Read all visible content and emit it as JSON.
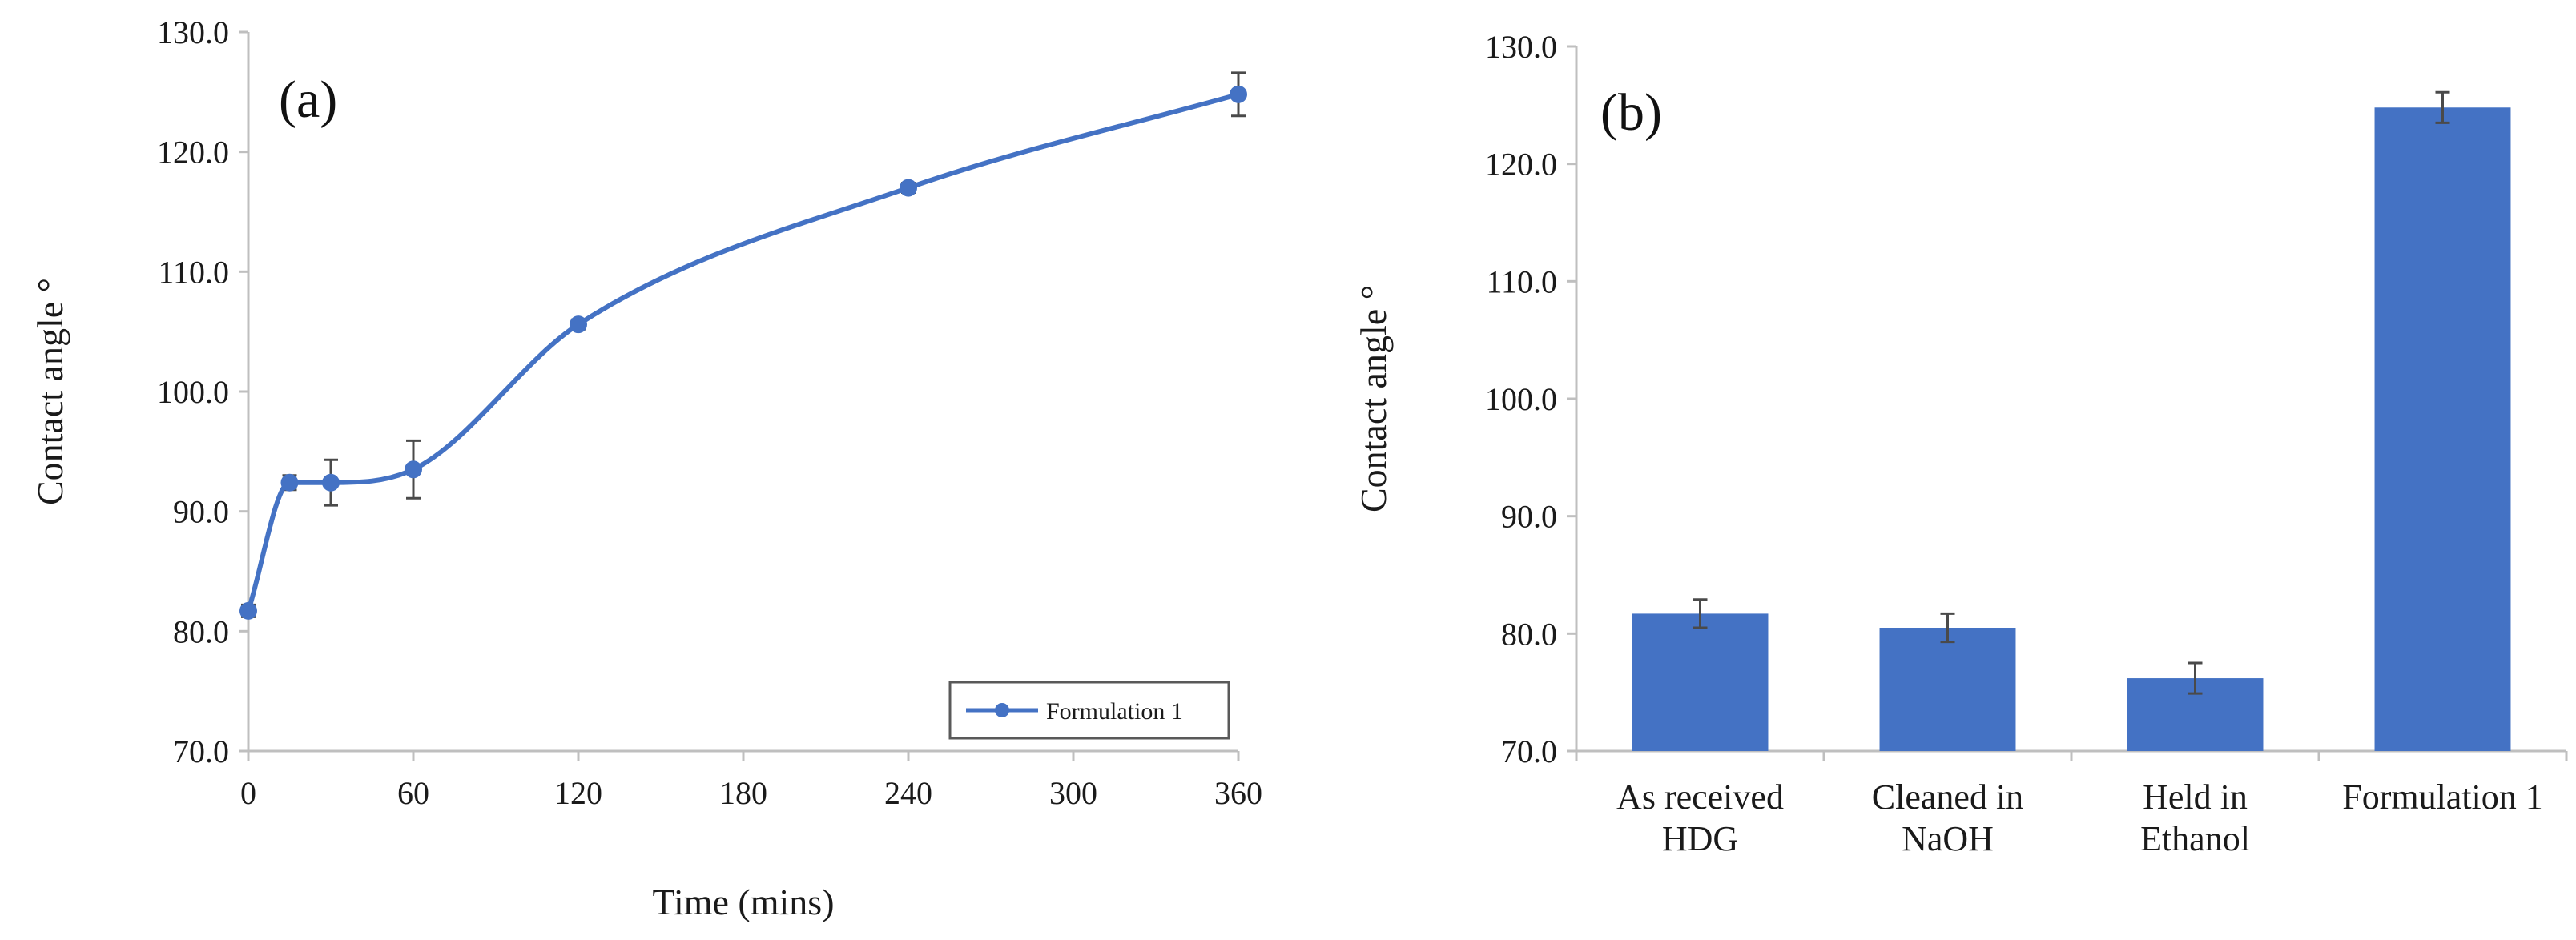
{
  "chart_data": [
    {
      "type": "line",
      "panel_label": "(a)",
      "title": "",
      "xlabel": "Time (mins)",
      "ylabel": "Contact angle °",
      "xlim": [
        0,
        360
      ],
      "ylim": [
        70.0,
        130.0
      ],
      "xticks": [
        "0",
        "60",
        "120",
        "180",
        "240",
        "300",
        "360"
      ],
      "xtick_values": [
        0,
        60,
        120,
        180,
        240,
        300,
        360
      ],
      "yticks": [
        "70.0",
        "80.0",
        "90.0",
        "100.0",
        "110.0",
        "120.0",
        "130.0"
      ],
      "ytick_values": [
        70,
        80,
        90,
        100,
        110,
        120,
        130
      ],
      "grid": false,
      "legend_position": "bottom-right",
      "color": "#4472C4",
      "series": [
        {
          "name": "Formulation 1",
          "x": [
            0,
            15,
            30,
            60,
            120,
            240,
            360
          ],
          "y": [
            81.7,
            92.4,
            92.4,
            93.5,
            105.6,
            117.0,
            124.8
          ],
          "err": [
            0.5,
            0.6,
            1.9,
            2.4,
            0.4,
            0.4,
            1.8
          ]
        }
      ]
    },
    {
      "type": "bar",
      "panel_label": "(b)",
      "title": "",
      "xlabel": "",
      "ylabel": "Contact angle °",
      "ylim": [
        70.0,
        130.0
      ],
      "yticks": [
        "70.0",
        "80.0",
        "90.0",
        "100.0",
        "110.0",
        "120.0",
        "130.0"
      ],
      "ytick_values": [
        70,
        80,
        90,
        100,
        110,
        120,
        130
      ],
      "grid": false,
      "color": "#4472C4",
      "categories": [
        [
          "As received",
          "HDG"
        ],
        [
          "Cleaned in",
          "NaOH"
        ],
        [
          "Held in",
          "Ethanol"
        ],
        [
          "Formulation 1"
        ]
      ],
      "values": [
        81.7,
        80.5,
        76.2,
        124.8
      ],
      "err": [
        1.2,
        1.2,
        1.3,
        1.3
      ]
    }
  ]
}
